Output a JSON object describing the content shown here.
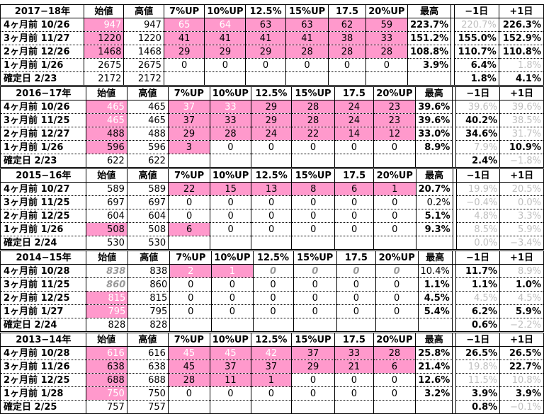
{
  "headers": [
    "始値",
    "高値",
    "7%UP",
    "10%UP",
    "12.5%",
    "15%UP",
    "17.5",
    "20%UP",
    "最高",
    "",
    "−1日",
    "+1日"
  ],
  "sections": [
    {
      "year": "2017−18年",
      "rows": [
        {
          "label": "4ヶ月前 10/26",
          "cells": [
            "947",
            "947",
            "65",
            "64",
            "63",
            "63",
            "62",
            "59",
            "223.7%",
            "220.7%",
            "226.3%"
          ]
        },
        {
          "label": "3ヶ月前 11/27",
          "cells": [
            "1220",
            "1220",
            "41",
            "41",
            "41",
            "41",
            "38",
            "33",
            "151.2%",
            "155.0%",
            "152.9%"
          ]
        },
        {
          "label": "2ヶ月前 12/26",
          "cells": [
            "1468",
            "1468",
            "29",
            "29",
            "29",
            "28",
            "28",
            "28",
            "108.8%",
            "110.7%",
            "110.8%"
          ]
        },
        {
          "label": "1ヶ月前 1/26",
          "cells": [
            "2675",
            "2675",
            "0",
            "0",
            "0",
            "0",
            "0",
            "0",
            "3.9%",
            "6.4%",
            "1.8%"
          ]
        },
        {
          "label": "確定日 2/23",
          "cells": [
            "2172",
            "2172",
            "",
            "",
            "",
            "",
            "",
            "",
            "",
            "1.8%",
            "4.1%"
          ]
        }
      ]
    },
    {
      "year": "2016−17年",
      "rows": [
        {
          "label": "4ヶ月前 10/26",
          "cells": [
            "465",
            "465",
            "37",
            "33",
            "29",
            "28",
            "24",
            "23",
            "39.6%",
            "39.6%",
            "39.6%"
          ]
        },
        {
          "label": "3ヶ月前 11/25",
          "cells": [
            "465",
            "465",
            "37",
            "33",
            "29",
            "28",
            "24",
            "23",
            "39.6%",
            "40.2%",
            "38.5%"
          ]
        },
        {
          "label": "2ヶ月前 12/27",
          "cells": [
            "488",
            "488",
            "29",
            "28",
            "24",
            "22",
            "14",
            "12",
            "33.0%",
            "34.6%",
            "31.7%"
          ]
        },
        {
          "label": "1ヶ月前 1/26",
          "cells": [
            "596",
            "596",
            "3",
            "0",
            "0",
            "0",
            "0",
            "0",
            "8.9%",
            "7.9%",
            "10.9%"
          ]
        },
        {
          "label": "確定日 2/23",
          "cells": [
            "622",
            "622",
            "",
            "",
            "",
            "",
            "",
            "",
            "",
            "2.4%",
            "−1.8%"
          ]
        }
      ]
    },
    {
      "year": "2015−16年",
      "rows": [
        {
          "label": "4ヶ月前 10/27",
          "cells": [
            "589",
            "589",
            "22",
            "15",
            "13",
            "8",
            "6",
            "1",
            "20.7%",
            "19.9%",
            "20.5%"
          ]
        },
        {
          "label": "3ヶ月前 11/25",
          "cells": [
            "697",
            "697",
            "0",
            "0",
            "0",
            "0",
            "0",
            "0",
            "0.2%",
            "−0.4%",
            "0.0%"
          ]
        },
        {
          "label": "2ヶ月前 12/25",
          "cells": [
            "604",
            "604",
            "0",
            "0",
            "0",
            "0",
            "0",
            "0",
            "5.1%",
            "4.8%",
            "3.3%"
          ]
        },
        {
          "label": "1ヶ月前 1/26",
          "cells": [
            "508",
            "508",
            "6",
            "0",
            "0",
            "0",
            "0",
            "0",
            "9.3%",
            "8.5%",
            "5.9%"
          ]
        },
        {
          "label": "確定日 2/24",
          "cells": [
            "530",
            "530",
            "",
            "",
            "",
            "",
            "",
            "",
            "",
            "0.0%",
            "−3.4%"
          ]
        }
      ]
    },
    {
      "year": "2014−15年",
      "rows": [
        {
          "label": "4ヶ月前 10/28",
          "cells": [
            "838",
            "838",
            "2",
            "1",
            "0",
            "0",
            "0",
            "0",
            "10.4%",
            "11.7%",
            "8.9%"
          ]
        },
        {
          "label": "3ヶ月前 11/25",
          "cells": [
            "860",
            "860",
            "0",
            "0",
            "0",
            "0",
            "0",
            "0",
            "1.1%",
            "1.1%",
            "1.0%"
          ]
        },
        {
          "label": "2ヶ月前 12/25",
          "cells": [
            "815",
            "815",
            "0",
            "0",
            "0",
            "0",
            "0",
            "0",
            "4.5%",
            "4.5%",
            "4.5%"
          ]
        },
        {
          "label": "1ヶ月前 1/27",
          "cells": [
            "795",
            "795",
            "0",
            "0",
            "0",
            "0",
            "0",
            "0",
            "5.4%",
            "6.2%",
            "5.9%"
          ]
        },
        {
          "label": "確定日 2/24",
          "cells": [
            "828",
            "828",
            "",
            "",
            "",
            "",
            "",
            "",
            "",
            "0.6%",
            "−2.2%"
          ]
        }
      ]
    },
    {
      "year": "2013−14年",
      "rows": [
        {
          "label": "4ヶ月前 10/28",
          "cells": [
            "616",
            "616",
            "45",
            "45",
            "42",
            "37",
            "33",
            "28",
            "25.8%",
            "26.5%",
            "26.5%"
          ]
        },
        {
          "label": "3ヶ月前 11/26",
          "cells": [
            "638",
            "638",
            "45",
            "37",
            "37",
            "29",
            "21",
            "6",
            "21.4%",
            "19.8%",
            "22.7%"
          ]
        },
        {
          "label": "2ヶ月前 12/25",
          "cells": [
            "688",
            "688",
            "28",
            "11",
            "1",
            "0",
            "0",
            "0",
            "12.6%",
            "11.5%",
            "10.8%"
          ]
        },
        {
          "label": "1ヶ月前 1/28",
          "cells": [
            "750",
            "750",
            "0",
            "0",
            "0",
            "0",
            "0",
            "0",
            "3.2%",
            "3.9%",
            "3.9%"
          ]
        },
        {
          "label": "確定日 2/25",
          "cells": [
            "757",
            "757",
            "",
            "",
            "",
            "",
            "",
            "",
            "",
            "0.8%",
            "−0.1%"
          ]
        }
      ]
    }
  ]
}
